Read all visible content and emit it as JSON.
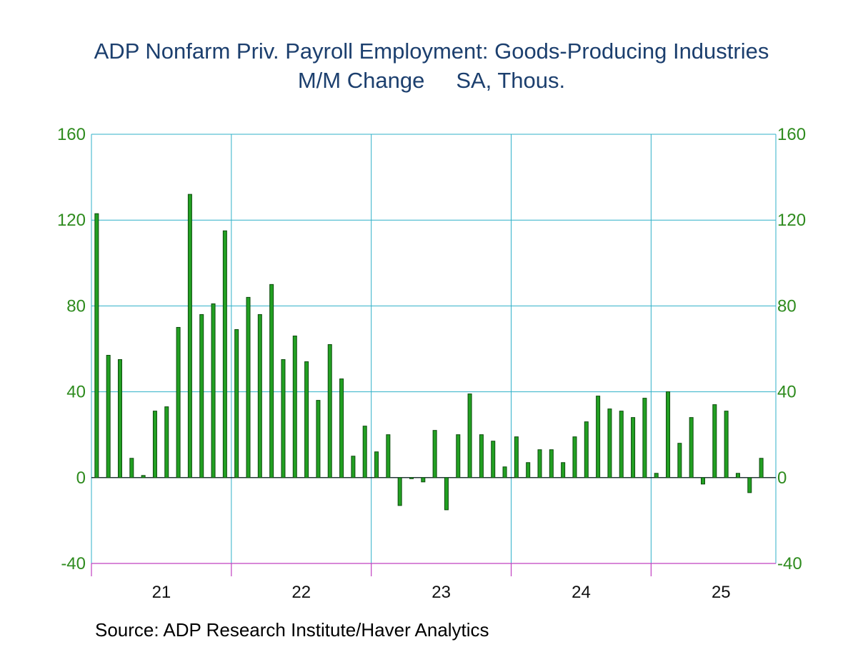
{
  "title": "ADP Nonfarm Priv. Payroll Employment: Goods-Producing Industries",
  "subtitle_left": "M/M Change",
  "subtitle_right": "SA, Thous.",
  "source": "Source:  ADP Research Institute/Haver Analytics",
  "colors": {
    "title": "#1c3f6e",
    "axis_labels": "#2e8b1e",
    "bar_fill": "#22a022",
    "bar_edge": "#0c4a0c",
    "grid": "#2fb0c8",
    "bottom_axis": "#c040c0"
  },
  "chart_data": {
    "type": "bar",
    "title": "ADP Nonfarm Priv. Payroll Employment: Goods-Producing Industries",
    "subtitle": "M/M Change    SA, Thous.",
    "xlabel": "",
    "ylabel": "",
    "ylim": [
      -40,
      160
    ],
    "yticks": [
      -40,
      0,
      40,
      80,
      120,
      160
    ],
    "y_axes": [
      "left",
      "right"
    ],
    "grid": true,
    "x_tick_labels": [
      "21",
      "22",
      "23",
      "24",
      "25"
    ],
    "start": "2021-01",
    "series": [
      {
        "values": [
          123,
          57,
          55,
          9,
          1,
          31,
          33,
          70,
          132,
          76,
          81,
          115,
          69,
          84,
          76,
          90,
          55,
          66,
          54,
          36,
          62,
          46,
          10,
          24,
          12,
          20,
          -13,
          0,
          -2,
          22,
          -15,
          20,
          39,
          20,
          17,
          5,
          19,
          7,
          13,
          13,
          7,
          19,
          26,
          38,
          32,
          31,
          28,
          37,
          2,
          40,
          16,
          28,
          -3,
          34,
          31,
          2,
          -7,
          9
        ]
      }
    ]
  }
}
